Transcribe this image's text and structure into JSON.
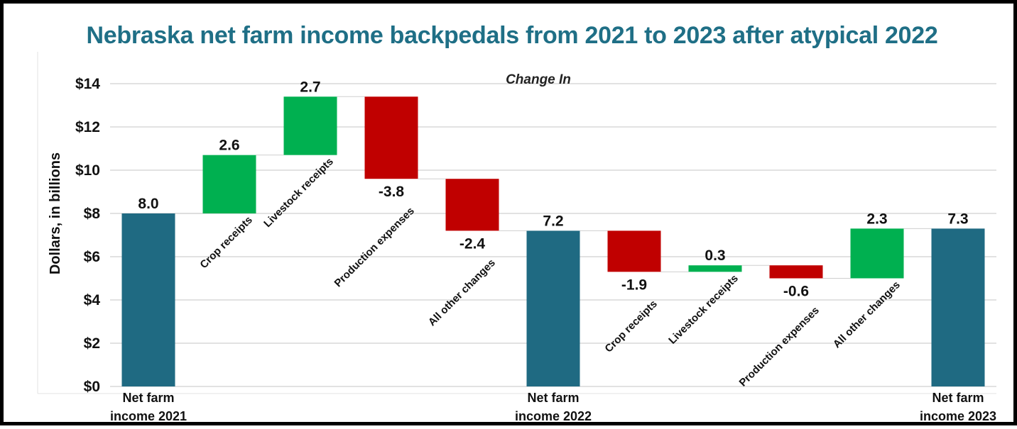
{
  "chart_data": {
    "type": "bar",
    "subtype": "waterfall",
    "title": "Nebraska net farm income backpedals from 2021 to 2023 after atypical 2022",
    "ylabel": "Dollars, in billions",
    "annotation": "Change In",
    "ylim": [
      0,
      14
    ],
    "yticks": [
      "$0",
      "$2",
      "$4",
      "$6",
      "$8",
      "$10",
      "$12",
      "$14"
    ],
    "grid": true,
    "colors": {
      "total": "#1f6a82",
      "increase": "#00b050",
      "decrease": "#c00000",
      "title": "#1f6f86",
      "grid": "#d9d9d9"
    },
    "bars": [
      {
        "label": "Net farm income 2021",
        "label_lines": [
          "Net farm",
          "income 2021"
        ],
        "kind": "total",
        "start": 0,
        "end": 8.0,
        "value_label": "8.0"
      },
      {
        "label": "Crop receipts",
        "kind": "increase",
        "start": 8.0,
        "end": 10.7,
        "value_label": "2.6"
      },
      {
        "label": "Livestock receipts",
        "kind": "increase",
        "start": 10.7,
        "end": 13.4,
        "value_label": "2.7"
      },
      {
        "label": "Production expenses",
        "kind": "decrease",
        "start": 13.4,
        "end": 9.6,
        "value_label": "-3.8"
      },
      {
        "label": "All other changes",
        "kind": "decrease",
        "start": 9.6,
        "end": 7.2,
        "value_label": "-2.4"
      },
      {
        "label": "Net farm income 2022",
        "label_lines": [
          "Net farm",
          "income 2022"
        ],
        "kind": "total",
        "start": 0,
        "end": 7.2,
        "value_label": "7.2"
      },
      {
        "label": "Crop receipts",
        "kind": "decrease",
        "start": 7.2,
        "end": 5.3,
        "value_label": "-1.9"
      },
      {
        "label": "Livestock receipts",
        "kind": "increase",
        "start": 5.3,
        "end": 5.6,
        "value_label": "0.3"
      },
      {
        "label": "Production expenses",
        "kind": "decrease",
        "start": 5.6,
        "end": 5.0,
        "value_label": "-0.6"
      },
      {
        "label": "All other changes",
        "kind": "increase",
        "start": 5.0,
        "end": 7.3,
        "value_label": "2.3"
      },
      {
        "label": "Net farm income 2023",
        "label_lines": [
          "Net farm",
          "income 2023"
        ],
        "kind": "total",
        "start": 0,
        "end": 7.3,
        "value_label": "7.3"
      }
    ]
  }
}
